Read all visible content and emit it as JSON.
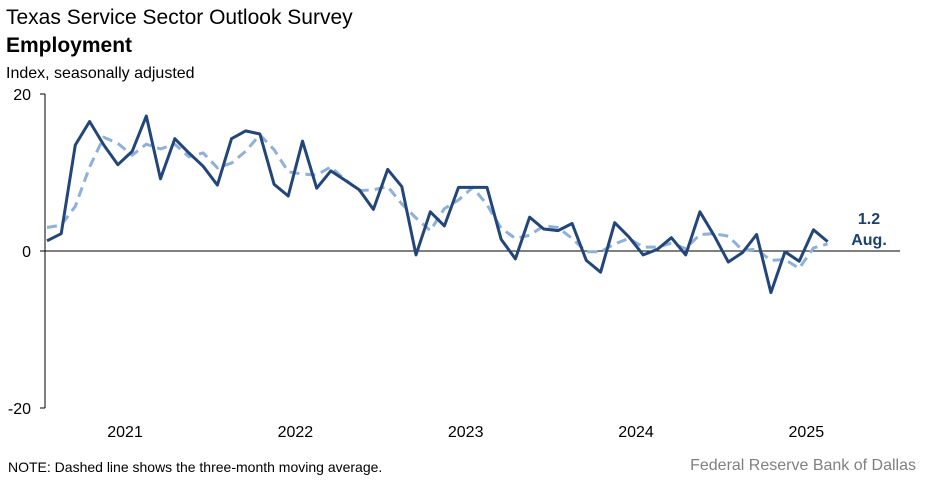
{
  "chart_data": {
    "type": "line",
    "title": "Texas Service Sector Outlook Survey",
    "subtitle": "Employment",
    "y_label": "Index, seasonally adjusted",
    "note": "NOTE: Dashed line shows the three-month moving average.",
    "source": "Federal Reserve Bank of Dallas",
    "annotations": [
      "Aug."
    ],
    "x": [
      2021.042,
      2021.125,
      2021.208,
      2021.292,
      2021.375,
      2021.458,
      2021.542,
      2021.625,
      2021.708,
      2021.792,
      2021.875,
      2021.958,
      2022.042,
      2022.125,
      2022.208,
      2022.292,
      2022.375,
      2022.458,
      2022.542,
      2022.625,
      2022.708,
      2022.792,
      2022.875,
      2022.958,
      2023.042,
      2023.125,
      2023.208,
      2023.292,
      2023.375,
      2023.458,
      2023.542,
      2023.625,
      2023.708,
      2023.792,
      2023.875,
      2023.958,
      2024.042,
      2024.125,
      2024.208,
      2024.292,
      2024.375,
      2024.458,
      2024.542,
      2024.625,
      2024.708,
      2024.792,
      2024.875,
      2024.958,
      2025.042,
      2025.125,
      2025.208,
      2025.292,
      2025.375,
      2025.458,
      2025.542,
      2025.625
    ],
    "series": [
      {
        "name": "Employment",
        "color": "#23467a",
        "dashed": false,
        "values": [
          1.3,
          2.2,
          13.5,
          16.5,
          13.5,
          11,
          12.7,
          17.2,
          9.2,
          14.3,
          12.5,
          10.8,
          8.4,
          14.3,
          15.3,
          14.9,
          8.5,
          7,
          14,
          8,
          10.2,
          9,
          7.8,
          5.3,
          10.4,
          8.2,
          -0.5,
          5,
          3.2,
          8.1,
          8.1,
          8.1,
          1.5,
          -1,
          4.3,
          2.8,
          2.6,
          3.5,
          -1.2,
          -2.7,
          3.6,
          1.8,
          -0.5,
          0.2,
          1.7,
          -0.5,
          5,
          2,
          -1.4,
          -0.2,
          2.1,
          -5.3,
          -0.1,
          -1.3,
          2.7,
          1.2
        ],
        "value_labels": {
          "55": "1.2"
        }
      },
      {
        "name": "Three-month moving average",
        "color": "#8fb0d9",
        "dashed": true,
        "values": [
          3,
          3.3,
          5.7,
          10.7,
          14.5,
          13.7,
          12.2,
          13.6,
          13,
          13.6,
          12,
          12.5,
          10.6,
          11.2,
          12.7,
          14.8,
          12.9,
          10.1,
          9.8,
          9.7,
          10.7,
          9.1,
          7.7,
          7.8,
          8.2,
          6,
          4.2,
          2.6,
          5.4,
          6.5,
          8.1,
          5.9,
          2.9,
          1.6,
          2,
          3.2,
          3,
          1.6,
          -0.1,
          -0.1,
          0.9,
          1.6,
          0.5,
          0.5,
          1,
          0.3,
          2.1,
          2.2,
          1.9,
          0.1,
          0.2,
          -1.2,
          -1.1,
          -2.2,
          0.4,
          0.9
        ]
      }
    ],
    "xlim": [
      2021.03,
      2026.05
    ],
    "xticks": [
      {
        "value": 2021.5,
        "label": "2021"
      },
      {
        "value": 2022.5,
        "label": "2022"
      },
      {
        "value": 2023.5,
        "label": "2023"
      },
      {
        "value": 2024.5,
        "label": "2024"
      },
      {
        "value": 2025.5,
        "label": "2025"
      }
    ],
    "ylim": [
      -20,
      20
    ],
    "yticks": [
      -20,
      0,
      20
    ]
  }
}
